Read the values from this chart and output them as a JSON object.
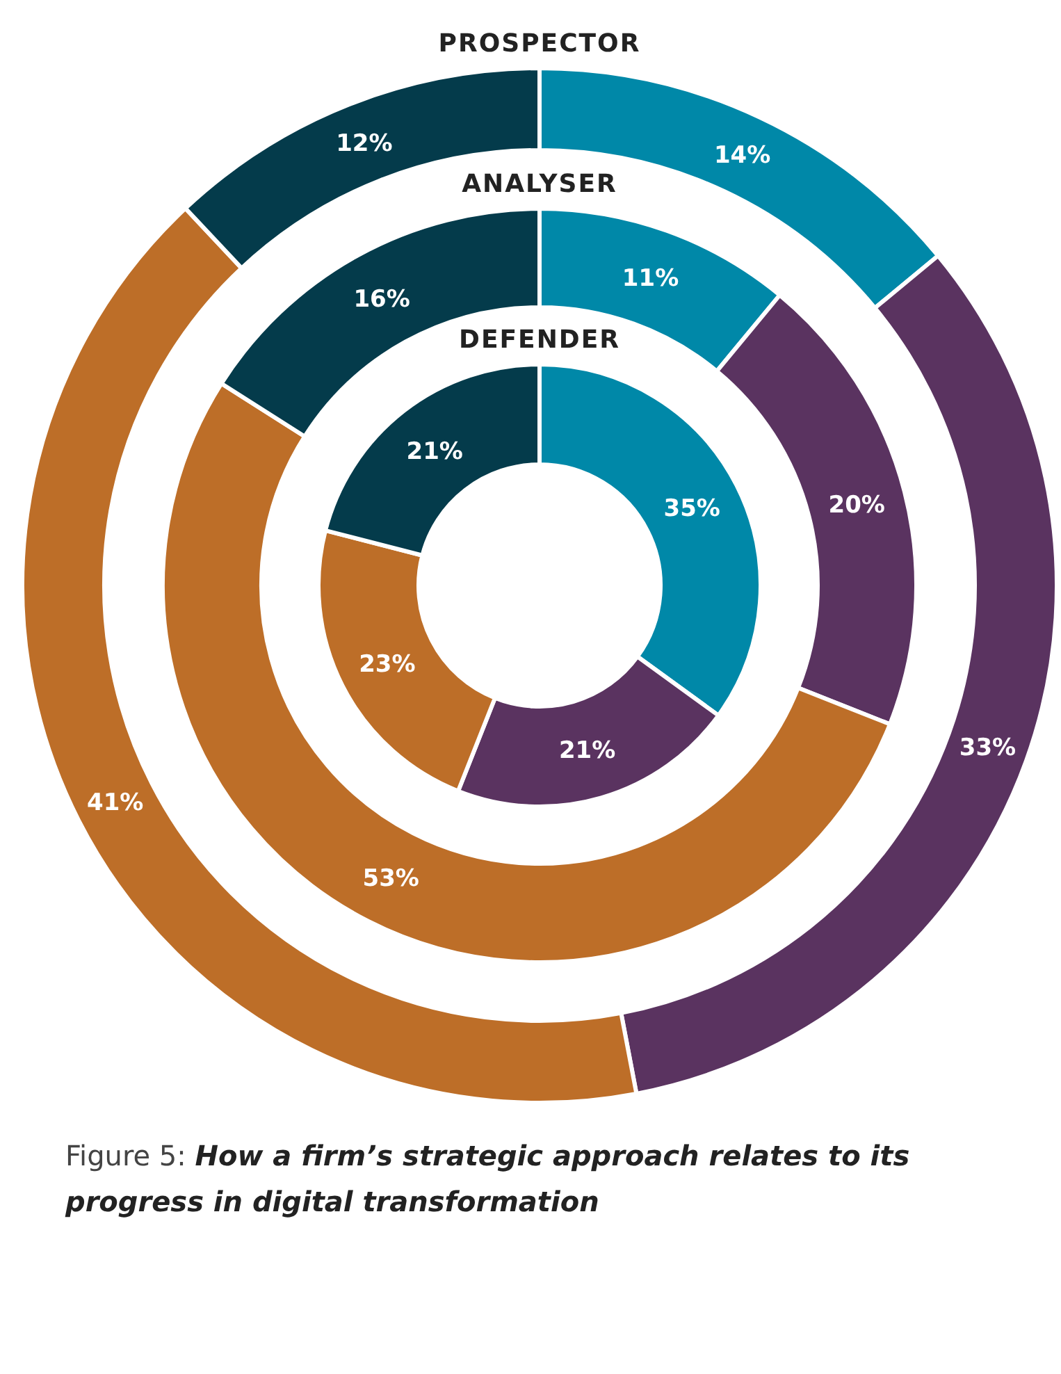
{
  "chart_data": [
    {
      "type": "donut",
      "title": "PROSPECTOR",
      "categories": [
        null,
        null,
        null,
        null
      ],
      "values": [
        14,
        33,
        41,
        12
      ],
      "value_labels": [
        "14%",
        "33%",
        "41%",
        "12%"
      ],
      "colors": [
        "#0088a8",
        "#5a3360",
        "#bd6e28",
        "#043b4b"
      ]
    },
    {
      "type": "donut",
      "title": "ANALYSER",
      "categories": [
        null,
        null,
        null,
        null
      ],
      "values": [
        11,
        20,
        53,
        16
      ],
      "value_labels": [
        "11%",
        "20%",
        "53%",
        "16%"
      ],
      "colors": [
        "#0088a8",
        "#5a3360",
        "#bd6e28",
        "#043b4b"
      ]
    },
    {
      "type": "donut",
      "title": "DEFENDER",
      "categories": [
        null,
        null,
        null,
        null
      ],
      "values": [
        35,
        21,
        23,
        21
      ],
      "value_labels": [
        "35%",
        "21%",
        "23%",
        "21%"
      ],
      "colors": [
        "#0088a8",
        "#5a3360",
        "#bd6e28",
        "#043b4b"
      ],
      "annotations": [
        "Figure 5: How a firm’s strategic approach relates to its progress in digital transformation"
      ]
    }
  ]
}
